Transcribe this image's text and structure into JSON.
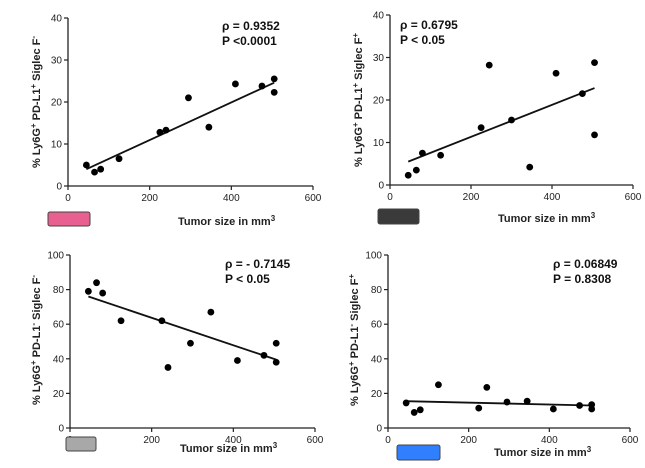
{
  "chart_data": [
    {
      "type": "scatter",
      "panel": "top-left",
      "ylabel": "% Ly6G+ PD-L1+ Siglec F-",
      "xlabel": "Tumor size in mm3",
      "xlim": [
        0,
        600
      ],
      "ylim": [
        0,
        40
      ],
      "xticks": [
        "0",
        "200",
        "400",
        "600"
      ],
      "yticks": [
        "0",
        "10",
        "20",
        "30",
        "40"
      ],
      "stat_rho": "ρ = 0.9352",
      "stat_p": "P <0.0001",
      "swatch_color": "#e8608f",
      "regression": [
        [
          45,
          4.0
        ],
        [
          505,
          24.6
        ]
      ],
      "x": [
        45,
        65,
        80,
        125,
        225,
        240,
        295,
        345,
        410,
        475,
        505,
        505
      ],
      "y": [
        5.0,
        3.3,
        4.0,
        6.5,
        12.8,
        13.3,
        21.0,
        14.0,
        24.3,
        23.8,
        25.5,
        22.3
      ]
    },
    {
      "type": "scatter",
      "panel": "top-right",
      "ylabel": "% Ly6G+ PD-L1+ Siglec F+",
      "xlabel": "Tumor size in mm3",
      "xlim": [
        0,
        600
      ],
      "ylim": [
        0,
        40
      ],
      "xticks": [
        "0",
        "200",
        "400",
        "600"
      ],
      "yticks": [
        "0",
        "10",
        "20",
        "30",
        "40"
      ],
      "stat_rho": "ρ = 0.6795",
      "stat_p": "P < 0.05",
      "swatch_color": "#3a3a3a",
      "regression": [
        [
          45,
          5.5
        ],
        [
          505,
          22.8
        ]
      ],
      "x": [
        45,
        65,
        80,
        125,
        225,
        245,
        300,
        345,
        410,
        475,
        505,
        505
      ],
      "y": [
        2.3,
        3.5,
        7.5,
        7.0,
        13.5,
        28.2,
        15.3,
        4.2,
        26.3,
        21.5,
        28.8,
        11.8
      ]
    },
    {
      "type": "scatter",
      "panel": "bottom-left",
      "ylabel": "% Ly6G+ PD-L1- Siglec F-",
      "xlabel": "Tumor size in mm3",
      "xlim": [
        0,
        600
      ],
      "ylim": [
        0,
        100
      ],
      "xticks": [
        "0",
        "200",
        "400",
        "600"
      ],
      "yticks": [
        "0",
        "20",
        "40",
        "60",
        "80",
        "100"
      ],
      "stat_rho": "ρ = - 0.7145",
      "stat_p": "P < 0.05",
      "swatch_color": "#a8a8a8",
      "regression": [
        [
          45,
          76.0
        ],
        [
          505,
          39.5
        ]
      ],
      "x": [
        45,
        65,
        80,
        125,
        225,
        240,
        295,
        345,
        410,
        475,
        505,
        505
      ],
      "y": [
        79.0,
        84.0,
        78.0,
        62.0,
        62.0,
        35.0,
        49.0,
        67.0,
        39.0,
        42.0,
        49.0,
        38.0
      ]
    },
    {
      "type": "scatter",
      "panel": "bottom-right",
      "ylabel": "% Ly6G+ PD-L1- Siglec F+",
      "xlabel": "Tumor size in mm3",
      "xlim": [
        0,
        600
      ],
      "ylim": [
        0,
        100
      ],
      "xticks": [
        "0",
        "200",
        "400",
        "600"
      ],
      "yticks": [
        "0",
        "20",
        "40",
        "60",
        "80",
        "100"
      ],
      "stat_rho": "ρ = 0.06849",
      "stat_p": "P = 0.8308",
      "swatch_color": "#2f7fff",
      "regression": [
        [
          45,
          15.5
        ],
        [
          505,
          13.0
        ]
      ],
      "x": [
        45,
        65,
        80,
        125,
        225,
        245,
        295,
        345,
        410,
        475,
        505,
        505
      ],
      "y": [
        14.5,
        9.0,
        10.5,
        25.0,
        11.5,
        23.5,
        15.0,
        15.5,
        11.0,
        13.0,
        13.5,
        11.0
      ]
    }
  ]
}
